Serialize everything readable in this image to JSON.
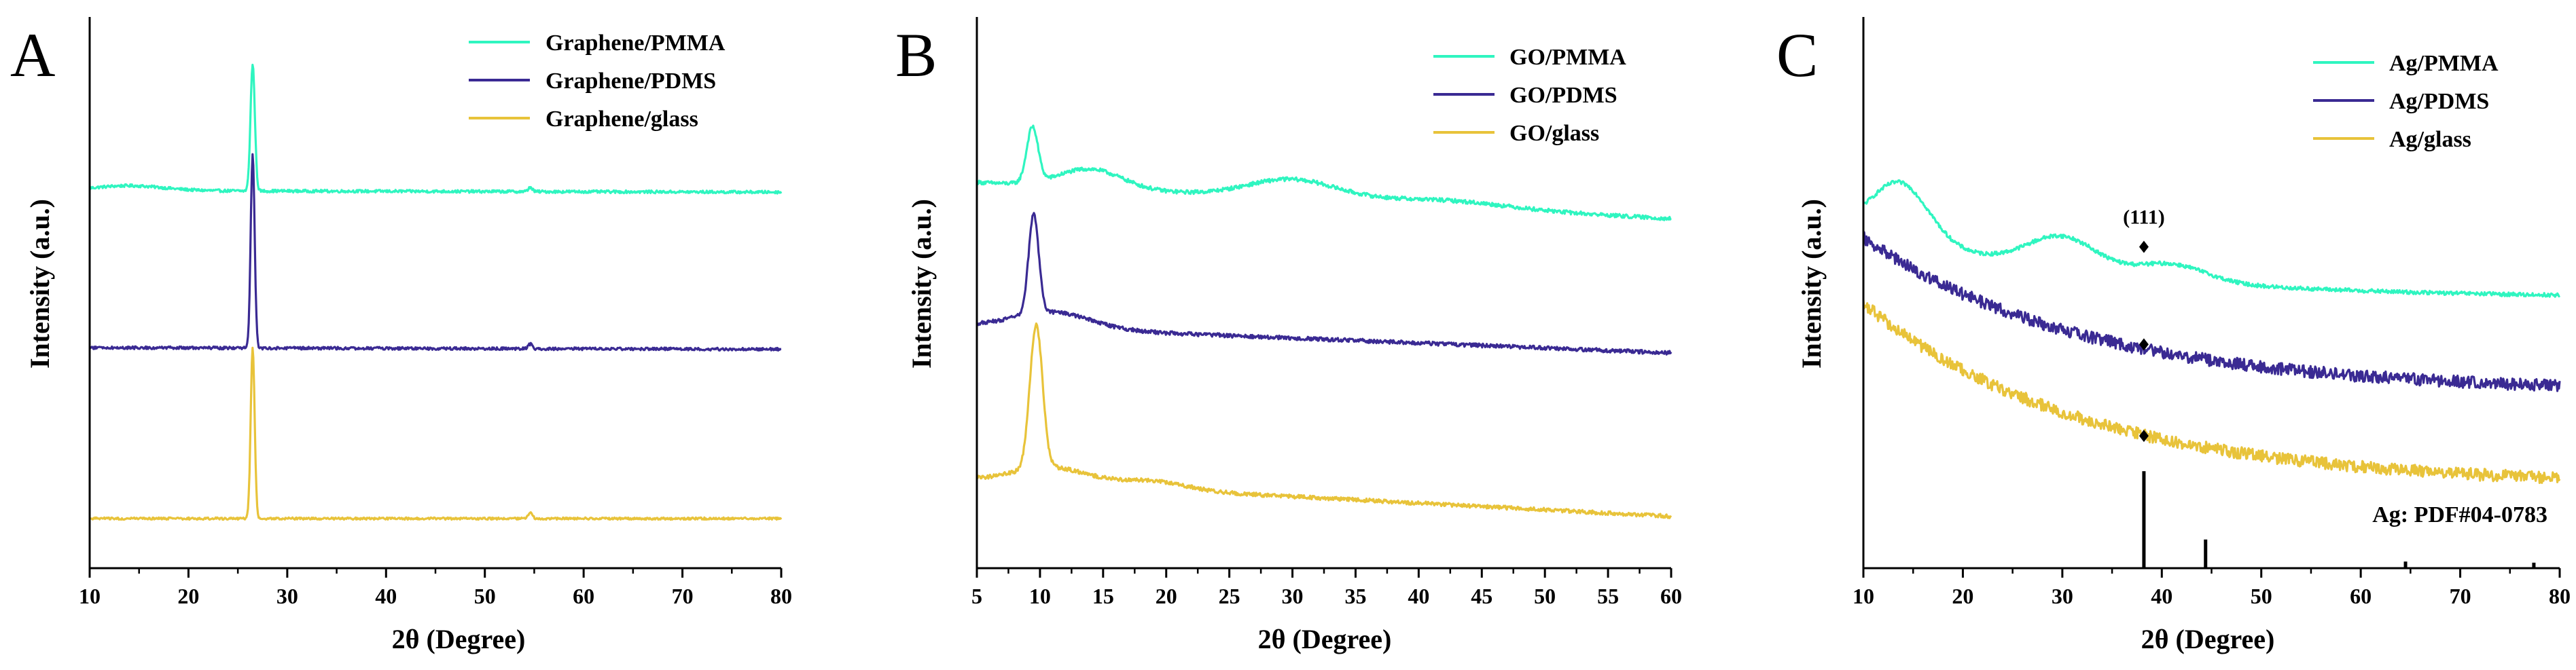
{
  "colors": {
    "cyan": "#2FF5C0",
    "purple": "#3A2A93",
    "yellow": "#E8C33A",
    "axis": "#000000"
  },
  "chart_data": [
    {
      "type": "line",
      "panel_letter": "A",
      "xlabel": "2θ (Degree)",
      "ylabel": "Intensity (a.u.)",
      "xlim": [
        10,
        80
      ],
      "ylim": [
        0,
        100
      ],
      "x_ticks": [
        10,
        20,
        30,
        40,
        50,
        60,
        70,
        80
      ],
      "x_tick_labels": [
        "10",
        "20",
        "30",
        "40",
        "50",
        "60",
        "70",
        "80"
      ],
      "legend_position": "top-right",
      "legend": [
        "Graphene/PMMA",
        "Graphene/PDMS",
        "Graphene/glass"
      ],
      "series": [
        {
          "name": "Graphene/PMMA",
          "color": "cyan",
          "baseline": 68.5,
          "slope": -0.004,
          "noise": 0.25,
          "features": [
            [
              14,
              0.9,
              3.5
            ],
            [
              26.5,
              23,
              0.22
            ],
            [
              54.6,
              0.8,
              0.2
            ]
          ]
        },
        {
          "name": "Graphene/PDMS",
          "color": "purple",
          "baseline": 40.0,
          "slope": -0.004,
          "noise": 0.25,
          "features": [
            [
              26.5,
              35,
              0.2
            ],
            [
              54.6,
              0.8,
              0.2
            ]
          ]
        },
        {
          "name": "Graphene/glass",
          "color": "yellow",
          "baseline": 9.0,
          "slope": 0,
          "noise": 0.2,
          "features": [
            [
              26.5,
              31,
              0.2
            ],
            [
              54.6,
              1.2,
              0.2
            ]
          ]
        }
      ]
    },
    {
      "type": "line",
      "panel_letter": "B",
      "xlabel": "2θ (Degree)",
      "ylabel": "Intensity (a.u.)",
      "xlim": [
        5,
        60
      ],
      "ylim": [
        0,
        100
      ],
      "x_ticks": [
        5,
        10,
        15,
        20,
        25,
        30,
        35,
        40,
        45,
        50,
        55,
        60
      ],
      "x_tick_labels": [
        "5",
        "10",
        "15",
        "20",
        "25",
        "30",
        "35",
        "40",
        "45",
        "50",
        "55",
        "60"
      ],
      "legend_position": "top-right",
      "legend": [
        "GO/PMMA",
        "GO/PDMS",
        "GO/glass"
      ],
      "series": [
        {
          "name": "GO/PMMA",
          "color": "cyan",
          "baseline": 70.0,
          "slope": -0.12,
          "noise": 0.35,
          "features": [
            [
              9.4,
              10,
              0.45
            ],
            [
              14,
              3.5,
              2.5
            ],
            [
              30,
              3.5,
              3.5
            ],
            [
              42,
              1.2,
              5
            ]
          ]
        },
        {
          "name": "GO/PDMS",
          "color": "purple",
          "baseline": 44.0,
          "slope": -0.09,
          "noise": 0.35,
          "features": [
            [
              9.5,
              18,
              0.4
            ],
            [
              11,
              3,
              3
            ]
          ]
        },
        {
          "name": "GO/glass",
          "color": "yellow",
          "baseline": 16.0,
          "slope": -0.12,
          "noise": 0.35,
          "features": [
            [
              9.7,
              26,
              0.5
            ],
            [
              11,
              3,
              3
            ],
            [
              19,
              1.5,
              2.5
            ]
          ]
        }
      ]
    },
    {
      "type": "line",
      "panel_letter": "C",
      "xlabel": "2θ (Degree)",
      "ylabel": "Intensity (a.u.)",
      "xlim": [
        10,
        80
      ],
      "ylim": [
        0,
        100
      ],
      "x_ticks": [
        10,
        20,
        30,
        40,
        50,
        60,
        70,
        80
      ],
      "x_tick_labels": [
        "10",
        "20",
        "30",
        "40",
        "50",
        "60",
        "70",
        "80"
      ],
      "legend_position": "top-right",
      "legend": [
        "Ag/PMMA",
        "Ag/PDMS",
        "Ag/glass"
      ],
      "annotations": [
        {
          "text": "(111)",
          "x": 38.2,
          "y": 62.5
        },
        {
          "marker": "diamond",
          "x": 38.2,
          "y": 58.3
        },
        {
          "marker": "diamond",
          "x": 38.2,
          "y": 40.6
        },
        {
          "marker": "diamond",
          "x": 38.2,
          "y": 24.0
        }
      ],
      "reference": {
        "label": "Ag: PDF#04-0783",
        "lines": [
          {
            "x": 38.2,
            "height": 17.6
          },
          {
            "x": 44.4,
            "height": 5.2
          },
          {
            "x": 64.5,
            "height": 1.2
          },
          {
            "x": 77.4,
            "height": 1.0
          }
        ]
      },
      "series": [
        {
          "name": "Ag/PMMA",
          "color": "cyan",
          "baseline": 49,
          "decay": [
            13,
            22
          ],
          "noise": 0.35,
          "features": [
            [
              13.8,
              10,
              2.8
            ],
            [
              30,
              6,
              3.5
            ],
            [
              41,
              3,
              3.5
            ]
          ]
        },
        {
          "name": "Ag/PDMS",
          "color": "purple",
          "baseline": 32,
          "decay": [
            28,
            22
          ],
          "noise": 1.1,
          "features": []
        },
        {
          "name": "Ag/glass",
          "color": "yellow",
          "baseline": 15,
          "decay": [
            33,
            22
          ],
          "noise": 1.1,
          "features": []
        }
      ]
    }
  ]
}
